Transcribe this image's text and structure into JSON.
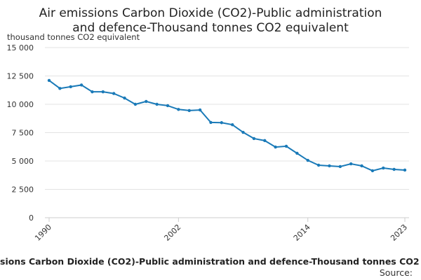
{
  "chart_data": {
    "type": "line",
    "title": "Air emissions Carbon Dioxide (CO2)-Public administration",
    "subtitle": "and defence-Thousand tonnes CO2 equivalent",
    "y_label": "thousand tonnes CO2 equivalent",
    "caption": "sions Carbon Dioxide (CO2)-Public administration and defence-Thousand tonnes CO2",
    "source": "Source:",
    "x": [
      1990,
      1991,
      1992,
      1993,
      1994,
      1995,
      1996,
      1997,
      1998,
      1999,
      2000,
      2001,
      2002,
      2003,
      2004,
      2005,
      2006,
      2007,
      2008,
      2009,
      2010,
      2011,
      2012,
      2013,
      2014,
      2015,
      2016,
      2017,
      2018,
      2019,
      2020,
      2021,
      2022,
      2023
    ],
    "series": [
      {
        "name": "thousand tonnes CO2 equivalent",
        "color": "#1a7ab8",
        "values": [
          12100,
          11400,
          11550,
          11700,
          11100,
          11100,
          10950,
          10550,
          10000,
          10250,
          10000,
          9880,
          9550,
          9450,
          9500,
          8400,
          8380,
          8200,
          7530,
          6980,
          6800,
          6230,
          6300,
          5680,
          5060,
          4630,
          4570,
          4510,
          4750,
          4570,
          4140,
          4380,
          4260,
          4200
        ]
      }
    ],
    "xlim": [
      1990,
      2023
    ],
    "xticks": [
      1990,
      2002,
      2014,
      2023
    ],
    "ylim": [
      0,
      15000
    ],
    "yticks": [
      0,
      {
        "value": 2500,
        "label": "2 500"
      },
      {
        "value": 5000,
        "label": "5 000"
      },
      {
        "value": 7500,
        "label": "7 500"
      },
      {
        "value": 10000,
        "label": "10 000"
      },
      {
        "value": 12500,
        "label": "12 500"
      },
      {
        "value": 15000,
        "label": "15 000"
      }
    ],
    "grid": true
  }
}
